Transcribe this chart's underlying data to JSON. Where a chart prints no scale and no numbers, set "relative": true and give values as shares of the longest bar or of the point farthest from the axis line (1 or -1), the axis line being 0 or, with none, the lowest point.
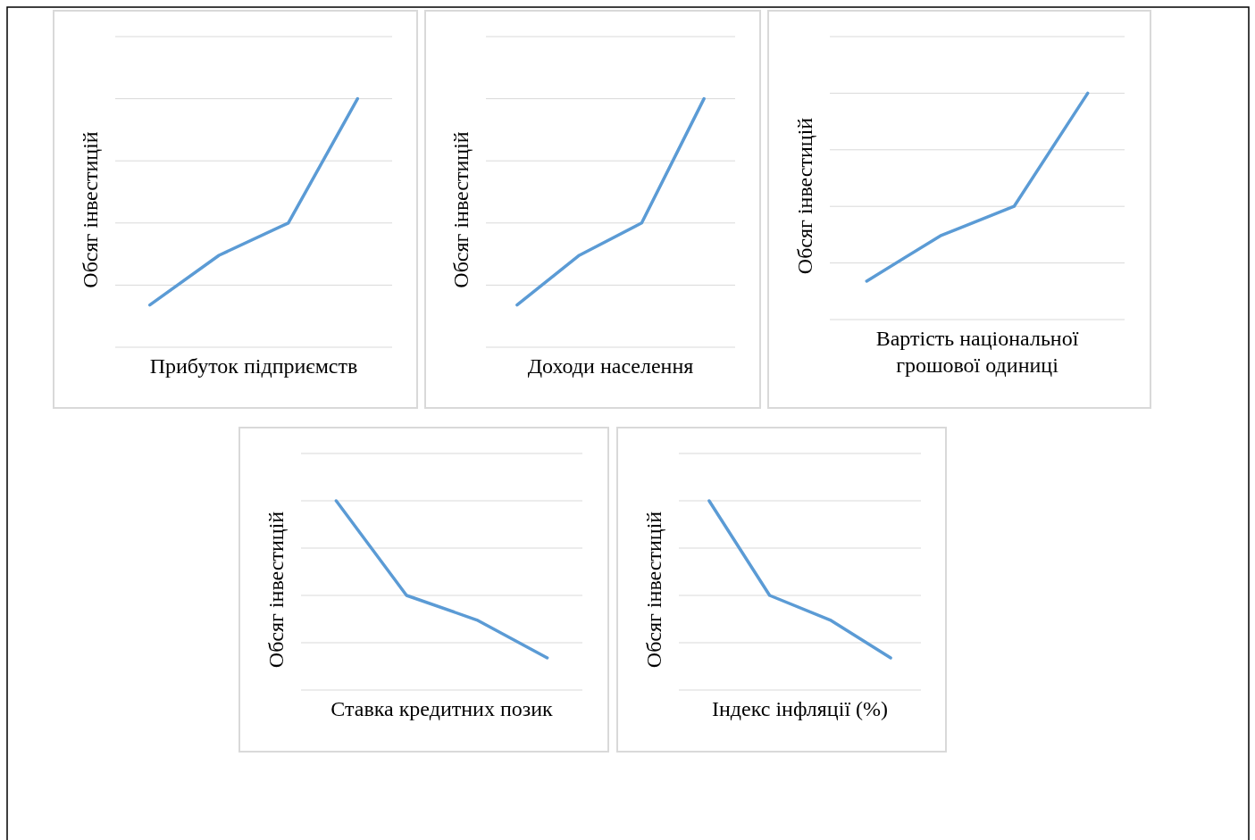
{
  "chart_data": [
    {
      "type": "line",
      "relative": true,
      "xlabel": "Прибуток підприємств",
      "ylabel": "Обсяг інвестицій",
      "categories": [
        null,
        null,
        null,
        null
      ],
      "grid": true,
      "color": "#5b9bd5",
      "values": [
        0.17,
        0.37,
        0.5,
        1
      ]
    },
    {
      "type": "line",
      "relative": true,
      "xlabel": "Доходи населення",
      "ylabel": "Обсяг інвестицій",
      "categories": [
        null,
        null,
        null,
        null
      ],
      "grid": true,
      "color": "#5b9bd5",
      "values": [
        0.17,
        0.37,
        0.5,
        1
      ]
    },
    {
      "type": "line",
      "relative": true,
      "xlabel": "Вартість національної грошової одиниці",
      "ylabel": "Обсяг інвестицій",
      "categories": [
        null,
        null,
        null,
        null
      ],
      "grid": true,
      "color": "#5b9bd5",
      "values": [
        0.17,
        0.37,
        0.5,
        1
      ]
    },
    {
      "type": "line",
      "relative": true,
      "xlabel": "Ставка кредитних позик",
      "ylabel": "Обсяг інвестицій",
      "categories": [
        null,
        null,
        null,
        null
      ],
      "grid": true,
      "color": "#5b9bd5",
      "values": [
        1,
        0.5,
        0.37,
        0.17
      ]
    },
    {
      "type": "line",
      "relative": true,
      "xlabel": "Індекс інфляції (%)",
      "ylabel": "Обсяг інвестицій",
      "categories": [
        null,
        null,
        null,
        null
      ],
      "grid": true,
      "color": "#5b9bd5",
      "values": [
        1,
        0.5,
        0.37,
        0.17
      ]
    }
  ]
}
